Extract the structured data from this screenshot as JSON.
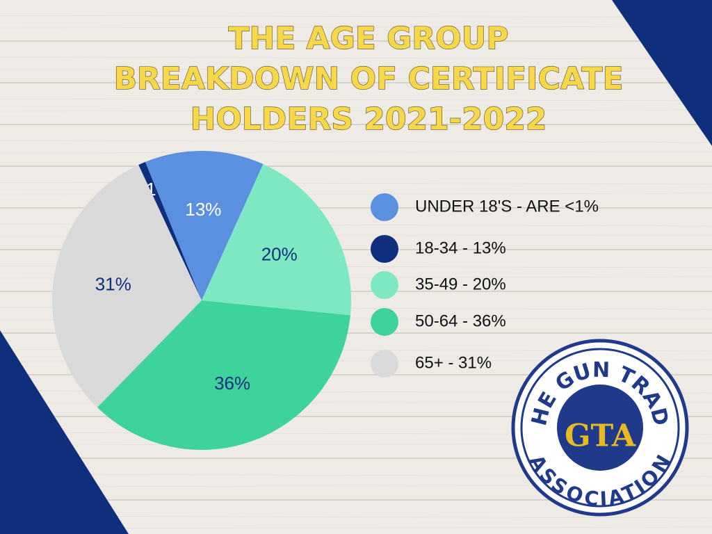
{
  "chart_data": {
    "type": "pie",
    "title": [
      "THE AGE GROUP",
      "BREAKDOWN OF CERTIFICATE",
      "HOLDERS 2021-2022"
    ],
    "values": [
      0.8,
      13,
      20,
      36,
      31
    ],
    "value_labels": [
      "<1%",
      "13%",
      "20%",
      "36%",
      "31%"
    ],
    "colors": [
      "#0f2f7c",
      "#5b8fe0",
      "#7de8c2",
      "#3fd39c",
      "#d9d9d9"
    ],
    "label_colors": [
      "#ffffff",
      "#ffffff",
      "#0f2f7c",
      "#0f2f7c",
      "#0f2f7c"
    ],
    "legend": [
      {
        "label": "UNDER 18'S -  ARE <1%",
        "color": "#5b8fe0"
      },
      {
        "label": "18-34 - 13%",
        "color": "#0f2f7c"
      },
      {
        "label": "35-49 - 20%",
        "color": "#7de8c2"
      },
      {
        "label": "50-64 - 36%",
        "color": "#3fd39c"
      },
      {
        "label": "65+ - 31%",
        "color": "#d9d9d9"
      }
    ]
  },
  "logo": {
    "top_text": "THE GUN TRADE",
    "bottom_text": "ASSOCIATION",
    "monogram": "GTA"
  }
}
